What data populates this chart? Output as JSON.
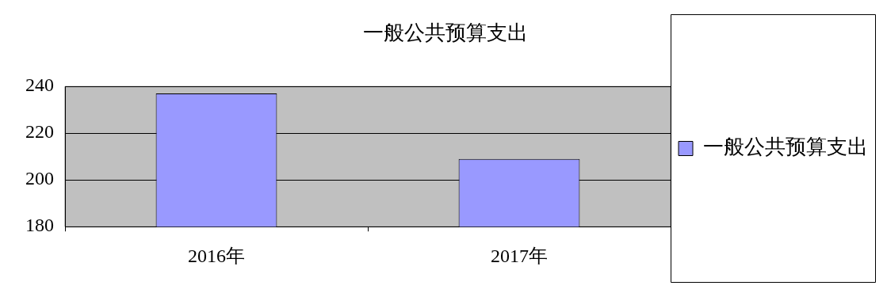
{
  "chart_data": {
    "type": "bar",
    "title": "一般公共预算支出",
    "categories": [
      "2016年",
      "2017年"
    ],
    "series": [
      {
        "name": "一般公共预算支出",
        "color": "#9999ff",
        "values": [
          237,
          209
        ]
      }
    ],
    "ylim": [
      180,
      240
    ],
    "yticks": [
      180,
      200,
      220,
      240
    ],
    "grid": "y",
    "legend": "right"
  }
}
